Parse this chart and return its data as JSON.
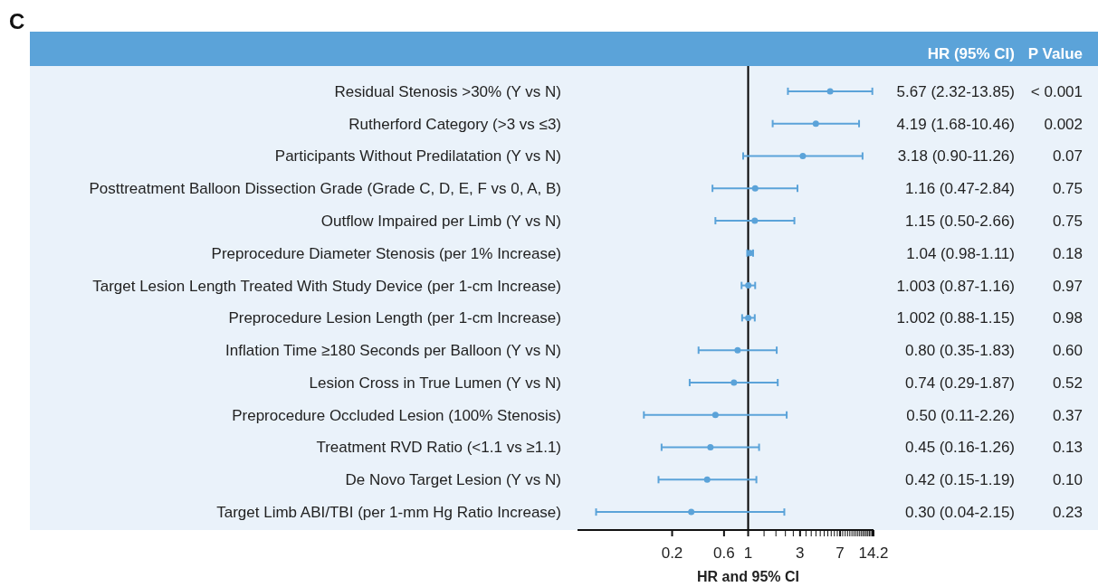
{
  "chart_data": {
    "type": "scatter",
    "orientation": "horizontal",
    "title": "C",
    "xlabel": "HR and 95% CI",
    "log": "x",
    "marker": "circle",
    "grid": false,
    "categories": [
      "Residual Stenosis >30% (Y vs N)",
      "Rutherford Category (>3 vs ≤3)",
      "Participants Without Predilatation (Y vs N)",
      "Posttreatment Balloon Dissection Grade (Grade C, D, E, F vs 0, A, B)",
      "Outflow Impaired per Limb (Y vs N)",
      "Preprocedure Diameter Stenosis (per 1% Increase)",
      "Target Lesion Length Treated With Study Device (per 1-cm Increase)",
      "Preprocedure Lesion Length (per 1-cm Increase)",
      "Inflation Time ≥180 Seconds per Balloon (Y vs N)",
      "Lesion Cross in True Lumen (Y vs N)",
      "Preprocedure Occluded Lesion (100% Stenosis)",
      "Treatment RVD Ratio (<1.1 vs ≥1.1)",
      "De Novo Target Lesion (Y vs N)",
      "Target Limb ABI/TBI (per 1-mm Hg Ratio Increase)"
    ],
    "series": [
      {
        "color": "#5ba3d9",
        "values": [
          5.67,
          4.19,
          3.18,
          1.16,
          1.15,
          1.04,
          1.003,
          1.002,
          0.8,
          0.74,
          0.5,
          0.45,
          0.42,
          0.3
        ],
        "errors": [
          [
            2.32,
            13.85
          ],
          [
            1.68,
            10.46
          ],
          [
            0.9,
            11.26
          ],
          [
            0.47,
            2.84
          ],
          [
            0.5,
            2.66
          ],
          [
            0.98,
            1.11
          ],
          [
            0.87,
            1.16
          ],
          [
            0.88,
            1.15
          ],
          [
            0.35,
            1.83
          ],
          [
            0.29,
            1.87
          ],
          [
            0.11,
            2.26
          ],
          [
            0.16,
            1.26
          ],
          [
            0.15,
            1.19
          ],
          [
            0.04,
            2.15
          ]
        ],
        "value_labels": [
          "5.67 (2.32-13.85)",
          "4.19 (1.68-10.46)",
          "3.18 (0.90-11.26)",
          "1.16 (0.47-2.84)",
          "1.15 (0.50-2.66)",
          "1.04 (0.98-1.11)",
          "1.003 (0.87-1.16)",
          "1.002 (0.88-1.15)",
          "0.80 (0.35-1.83)",
          "0.74 (0.29-1.87)",
          "0.50 (0.11-2.26)",
          "0.45 (0.16-1.26)",
          "0.42 (0.15-1.19)",
          "0.30 (0.04-2.15)"
        ]
      }
    ],
    "xlim": [
      0.027,
      14.2
    ],
    "xticks": [
      0.2,
      0.6,
      1,
      {
        "value": 1.4,
        "label": null
      },
      {
        "value": 1.8,
        "label": null
      },
      {
        "value": 2.2,
        "label": null
      },
      {
        "value": 2.6,
        "label": null
      },
      3,
      {
        "value": 3.4,
        "label": null
      },
      {
        "value": 3.8,
        "label": null
      },
      {
        "value": 4.2,
        "label": null
      },
      {
        "value": 4.6,
        "label": null
      },
      {
        "value": 5,
        "label": null
      },
      {
        "value": 5.4,
        "label": null
      },
      {
        "value": 5.8,
        "label": null
      },
      {
        "value": 6.2,
        "label": null
      },
      {
        "value": 6.6,
        "label": null
      },
      7,
      {
        "value": 7.4,
        "label": null
      },
      {
        "value": 7.8,
        "label": null
      },
      {
        "value": 8.2,
        "label": null
      },
      {
        "value": 8.6,
        "label": null
      },
      {
        "value": 9,
        "label": null
      },
      {
        "value": 9.4,
        "label": null
      },
      {
        "value": 9.8,
        "label": null
      },
      {
        "value": 10.2,
        "label": null
      },
      {
        "value": 10.6,
        "label": null
      },
      {
        "value": 11,
        "label": null
      },
      {
        "value": 11.4,
        "label": null
      },
      {
        "value": 11.8,
        "label": null
      },
      {
        "value": 12.2,
        "label": null
      },
      {
        "value": 12.6,
        "label": null
      },
      {
        "value": 13,
        "label": null
      },
      {
        "value": 13.4,
        "label": null
      },
      {
        "value": 13.8,
        "label": null
      },
      14.2
    ],
    "ref_lines": [
      {
        "axis": "x",
        "value": 1,
        "color": "#000000"
      }
    ],
    "annotations": [
      "HR (95% CI)",
      "P Value",
      "< 0.001",
      "0.002",
      "0.07",
      "0.75",
      "0.75",
      "0.18",
      "0.97",
      "0.98",
      "0.60",
      "0.52",
      "0.37",
      "0.13",
      "0.10",
      "0.23"
    ]
  }
}
